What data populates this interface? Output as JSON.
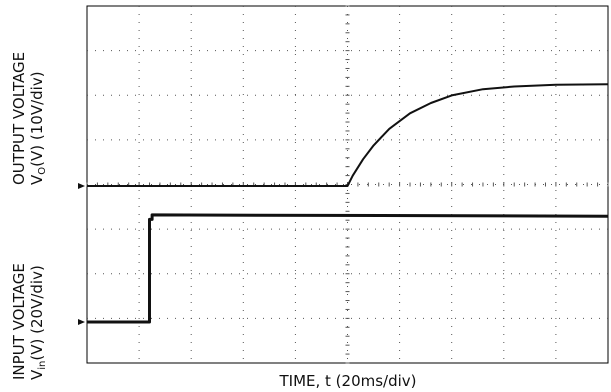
{
  "chart_data": {
    "type": "line",
    "xlabel": "TIME, t (20ms/div)",
    "ylabel_top": {
      "quantity": "OUTPUT VOLTAGE",
      "symbol": "V",
      "subscript": "O",
      "units": "(V) (10V/div)"
    },
    "ylabel_bottom": {
      "quantity": "INPUT VOLTAGE",
      "symbol": "V",
      "subscript": "in",
      "units": "(V) (20V/div)"
    },
    "grid": true,
    "x_divisions": 10,
    "y_divisions": 8,
    "series": [
      {
        "trace": "output",
        "x": [
          0,
          5,
          5.1,
          5.3,
          5.5,
          5.8,
          6.2,
          6.6,
          7.0,
          7.6,
          8.2,
          9.0,
          10
        ],
        "y": [
          0,
          0,
          0.23,
          0.6,
          0.91,
          1.28,
          1.63,
          1.86,
          2.03,
          2.17,
          2.23,
          2.27,
          2.28
        ]
      },
      {
        "trace": "input",
        "x": [
          0,
          1.2,
          1.2,
          1.25,
          1.25,
          10
        ],
        "y": [
          0,
          0,
          2.3,
          2.3,
          2.4,
          2.37
        ]
      }
    ],
    "markers": [
      {
        "trace": "output"
      },
      {
        "trace": "input"
      }
    ],
    "colors": {
      "trace": "#111111",
      "grid_dots": "#555555",
      "frame": "#000000"
    }
  }
}
